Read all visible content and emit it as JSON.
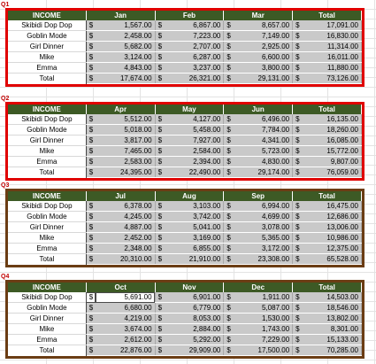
{
  "quarters": [
    {
      "label": "Q1",
      "headers": [
        "INCOME",
        "Jan",
        "Feb",
        "Mar",
        "Total"
      ],
      "rows": [
        {
          "name": "Skibidi Dop Dop",
          "values": [
            "1,567.00",
            "6,867.00",
            "8,657.00",
            "17,091.00"
          ]
        },
        {
          "name": "Goblin Mode",
          "values": [
            "2,458.00",
            "7,223.00",
            "7,149.00",
            "16,830.00"
          ]
        },
        {
          "name": "Girl Dinner",
          "values": [
            "5,682.00",
            "2,707.00",
            "2,925.00",
            "11,314.00"
          ]
        },
        {
          "name": "Mike",
          "values": [
            "3,124.00",
            "6,287.00",
            "6,600.00",
            "16,011.00"
          ]
        },
        {
          "name": "Emma",
          "values": [
            "4,843.00",
            "3,237.00",
            "3,800.00",
            "11,880.00"
          ]
        },
        {
          "name": "Total",
          "values": [
            "17,674.00",
            "26,321.00",
            "29,131.00",
            "73,126.00"
          ]
        }
      ]
    },
    {
      "label": "Q2",
      "headers": [
        "INCOME",
        "Apr",
        "May",
        "Jun",
        "Total"
      ],
      "rows": [
        {
          "name": "Skibidi Dop Dop",
          "values": [
            "5,512.00",
            "4,127.00",
            "6,496.00",
            "16,135.00"
          ]
        },
        {
          "name": "Goblin Mode",
          "values": [
            "5,018.00",
            "5,458.00",
            "7,784.00",
            "18,260.00"
          ]
        },
        {
          "name": "Girl Dinner",
          "values": [
            "3,817.00",
            "7,927.00",
            "4,341.00",
            "16,085.00"
          ]
        },
        {
          "name": "Mike",
          "values": [
            "7,465.00",
            "2,584.00",
            "5,723.00",
            "15,772.00"
          ]
        },
        {
          "name": "Emma",
          "values": [
            "2,583.00",
            "2,394.00",
            "4,830.00",
            "9,807.00"
          ]
        },
        {
          "name": "Total",
          "values": [
            "24,395.00",
            "22,490.00",
            "29,174.00",
            "76,059.00"
          ]
        }
      ]
    },
    {
      "label": "Q3",
      "headers": [
        "INCOME",
        "Jul",
        "Aug",
        "Sep",
        "Total"
      ],
      "rows": [
        {
          "name": "Skibidi Dop Dop",
          "values": [
            "6,378.00",
            "3,103.00",
            "6,994.00",
            "16,475.00"
          ]
        },
        {
          "name": "Goblin Mode",
          "values": [
            "4,245.00",
            "3,742.00",
            "4,699.00",
            "12,686.00"
          ]
        },
        {
          "name": "Girl Dinner",
          "values": [
            "4,887.00",
            "5,041.00",
            "3,078.00",
            "13,006.00"
          ]
        },
        {
          "name": "Mike",
          "values": [
            "2,452.00",
            "3,169.00",
            "5,365.00",
            "10,986.00"
          ]
        },
        {
          "name": "Emma",
          "values": [
            "2,348.00",
            "6,855.00",
            "3,172.00",
            "12,375.00"
          ]
        },
        {
          "name": "Total",
          "values": [
            "20,310.00",
            "21,910.00",
            "23,308.00",
            "65,528.00"
          ]
        }
      ]
    },
    {
      "label": "Q4",
      "headers": [
        "INCOME",
        "Oct",
        "Nov",
        "Dec",
        "Total"
      ],
      "rows": [
        {
          "name": "Skibidi Dop Dop",
          "values": [
            "5,691.00",
            "6,901.00",
            "1,911.00",
            "14,503.00"
          ]
        },
        {
          "name": "Goblin Mode",
          "values": [
            "6,680.00",
            "6,779.00",
            "5,087.00",
            "18,546.00"
          ]
        },
        {
          "name": "Girl Dinner",
          "values": [
            "4,219.00",
            "8,053.00",
            "1,530.00",
            "13,802.00"
          ]
        },
        {
          "name": "Mike",
          "values": [
            "3,674.00",
            "2,884.00",
            "1,743.00",
            "8,301.00"
          ]
        },
        {
          "name": "Emma",
          "values": [
            "2,612.00",
            "5,292.00",
            "7,229.00",
            "15,133.00"
          ]
        },
        {
          "name": "Total",
          "values": [
            "22,876.00",
            "29,909.00",
            "17,500.00",
            "70,285.00"
          ]
        }
      ]
    }
  ],
  "currency_symbol": "$",
  "colors": {
    "header_bg": "#3d5a25",
    "q1_border": "#e00000",
    "q2_border": "#e00000",
    "q3_border": "#6b3d14",
    "q4_border": "#6b3d14",
    "cell_fill": "#c9c9c9",
    "label_red": "#c00000"
  }
}
